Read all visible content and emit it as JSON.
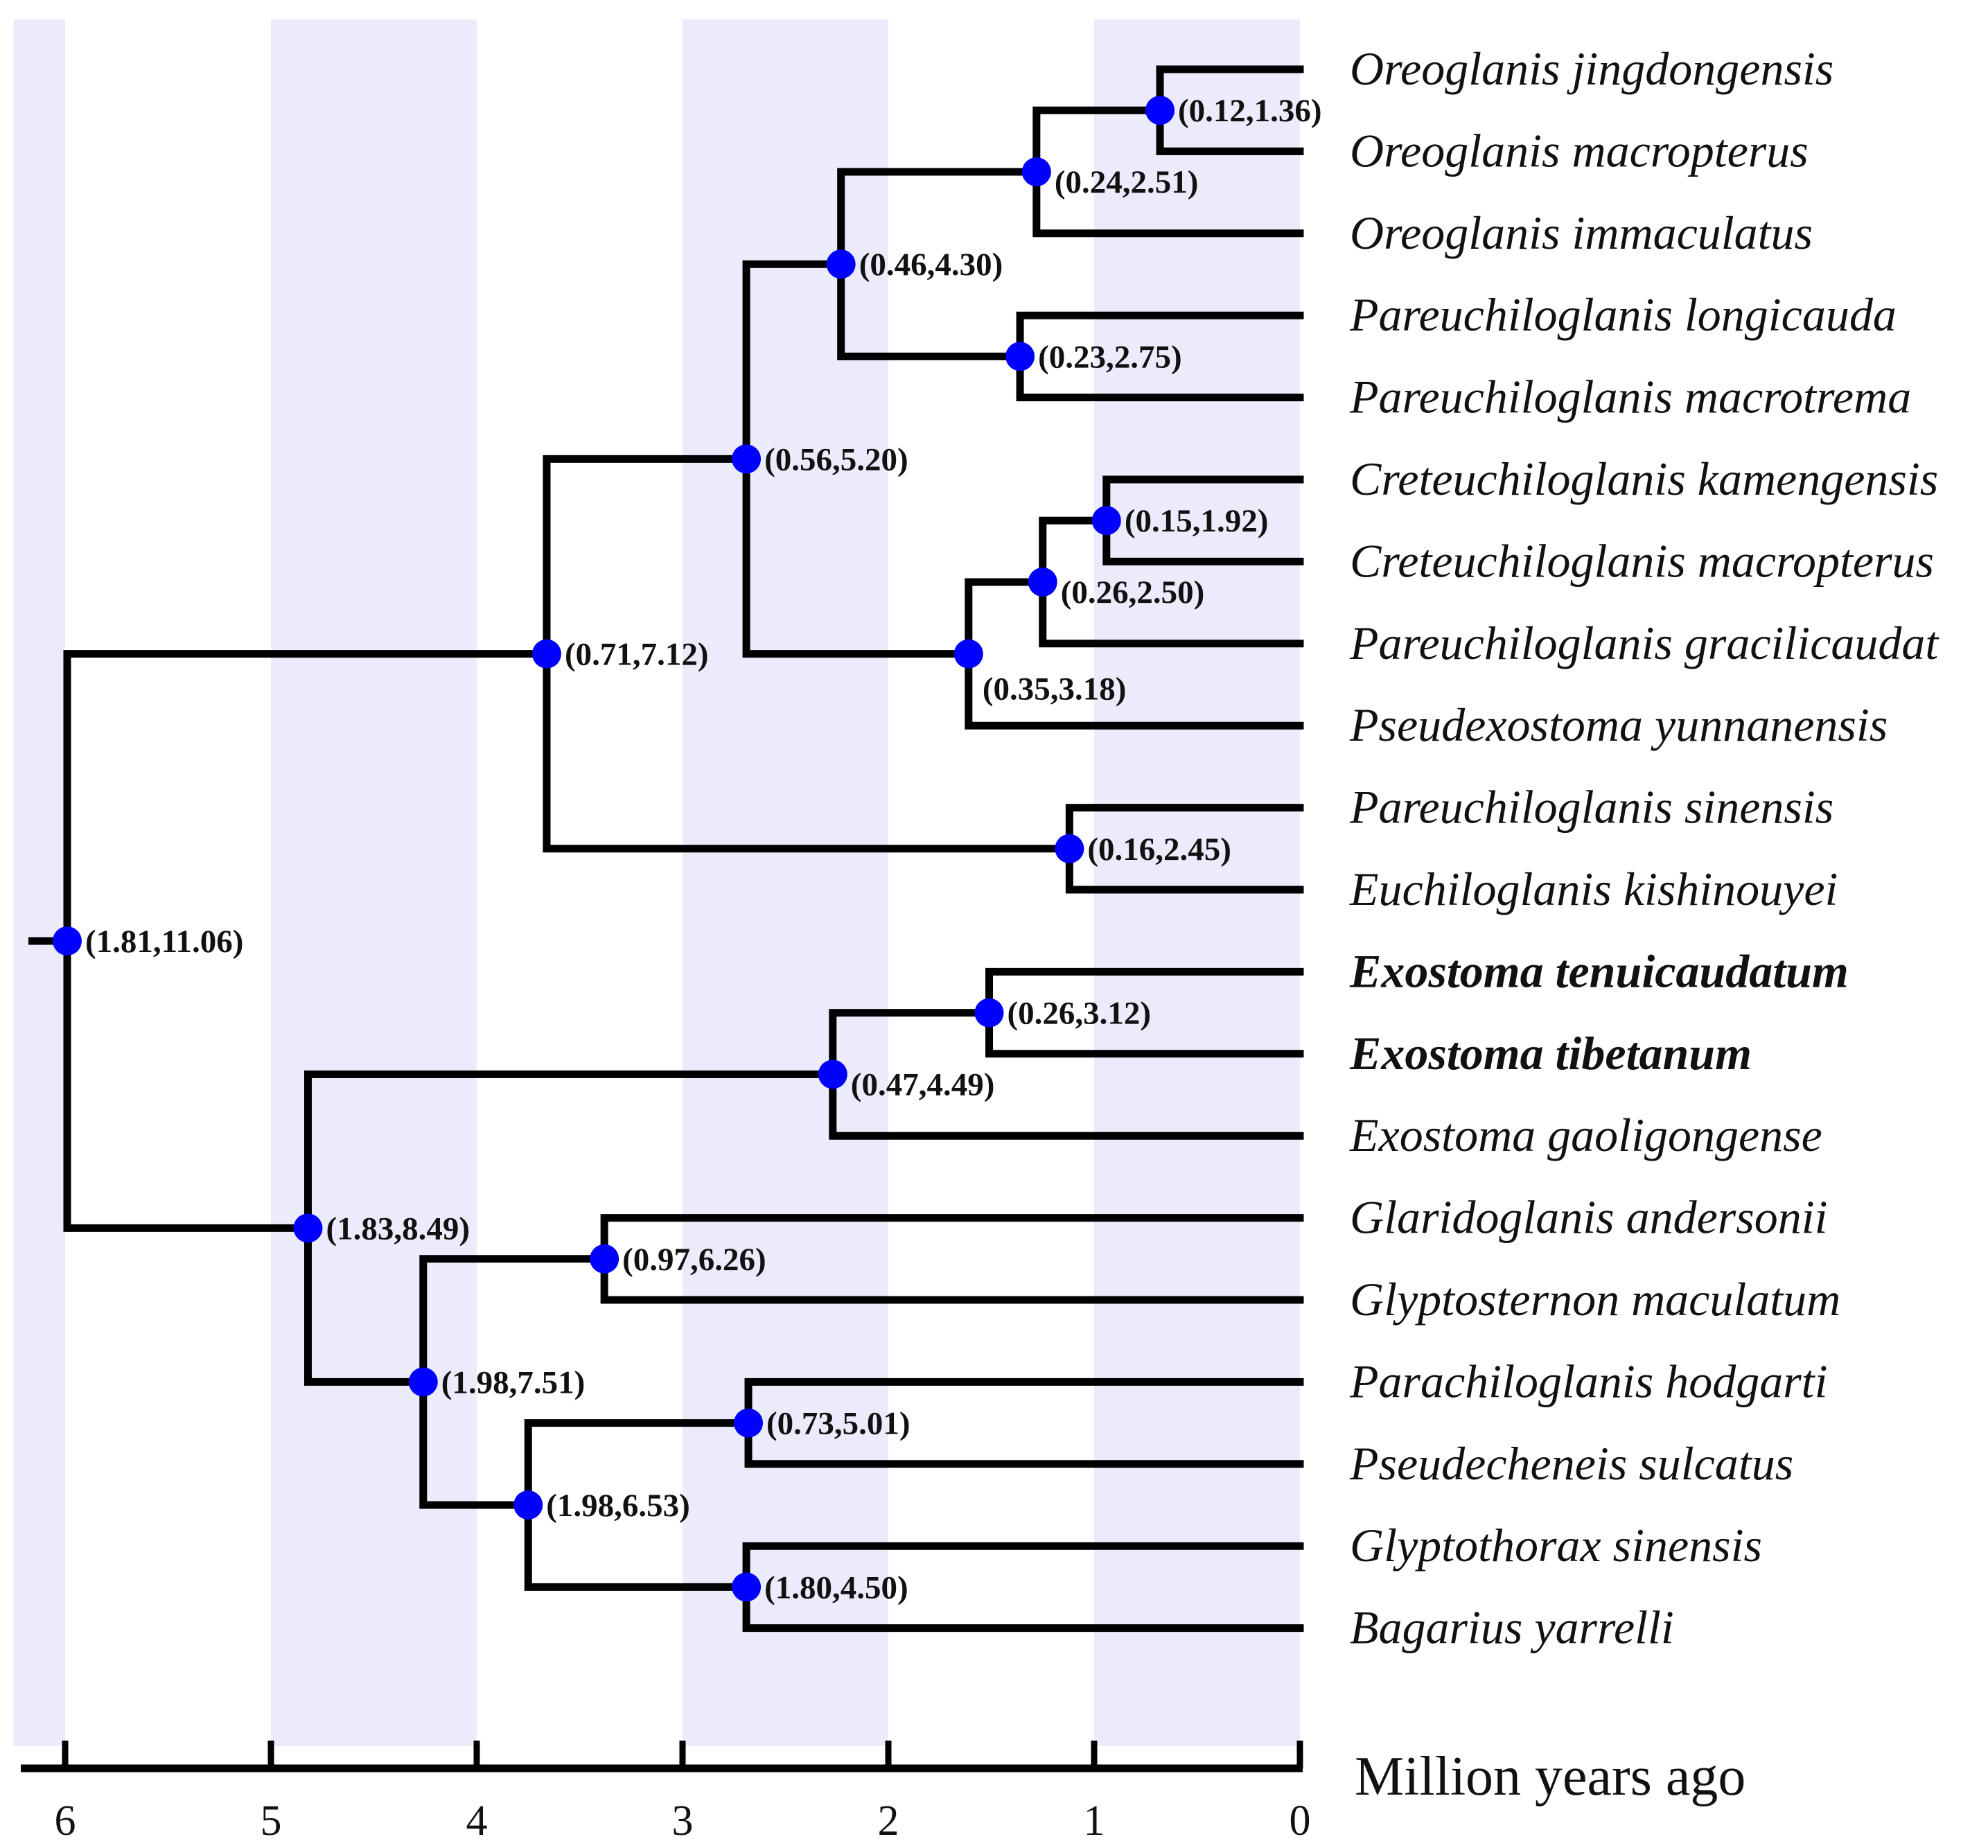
{
  "colors": {
    "band": "#ebebfb",
    "node": "#0000ff",
    "line": "#000000"
  },
  "axis": {
    "title": "Million years ago",
    "range": [
      6.25,
      0
    ],
    "ticks": [
      {
        "value": 6,
        "label": "6"
      },
      {
        "value": 5,
        "label": "5"
      },
      {
        "value": 4,
        "label": "4"
      },
      {
        "value": 3,
        "label": "3"
      },
      {
        "value": 2,
        "label": "2"
      },
      {
        "value": 1,
        "label": "1"
      },
      {
        "value": 0,
        "label": "0"
      }
    ],
    "bands": [
      [
        6.25,
        6.0
      ],
      [
        5.0,
        4.0
      ],
      [
        3.0,
        2.0
      ],
      [
        1.0,
        0.0
      ]
    ]
  },
  "taxa": [
    {
      "name": "Oreoglanis jingdongensis",
      "bold": false
    },
    {
      "name": "Oreoglanis macropterus",
      "bold": false
    },
    {
      "name": "Oreoglanis immaculatus",
      "bold": false
    },
    {
      "name": "Pareuchiloglanis longicauda",
      "bold": false
    },
    {
      "name": "Pareuchiloglanis macrotrema",
      "bold": false
    },
    {
      "name": "Creteuchiloglanis kamengensis",
      "bold": false
    },
    {
      "name": "Creteuchiloglanis macropterus",
      "bold": false
    },
    {
      "name": "Pareuchiloglanis gracilicaudat",
      "bold": false
    },
    {
      "name": "Pseudexostoma yunnanensis",
      "bold": false
    },
    {
      "name": "Pareuchiloglanis sinensis",
      "bold": false
    },
    {
      "name": "Euchiloglanis kishinouyei",
      "bold": false
    },
    {
      "name": "Exostoma tenuicaudatum",
      "bold": true
    },
    {
      "name": "Exostoma tibetanum",
      "bold": true
    },
    {
      "name": "Exostoma gaoligongense",
      "bold": false
    },
    {
      "name": "Glaridoglanis andersonii",
      "bold": false
    },
    {
      "name": "Glyptosternon maculatum",
      "bold": false
    },
    {
      "name": "Parachiloglanis hodgarti",
      "bold": false
    },
    {
      "name": "Pseudecheneis sulcatus",
      "bold": false
    },
    {
      "name": "Glyptothorax sinensis",
      "bold": false
    },
    {
      "name": "Bagarius yarrelli",
      "bold": false
    }
  ],
  "nodes": [
    {
      "id": "n1",
      "age": 0.68,
      "children": [
        0,
        1
      ],
      "label": "(0.12,1.36)",
      "label_pos": "right"
    },
    {
      "id": "n2",
      "age": 1.28,
      "children": [
        "n1",
        2
      ],
      "label": "(0.24,2.51)",
      "label_pos": "right-below"
    },
    {
      "id": "n4",
      "age": 1.36,
      "children": [
        3,
        4
      ],
      "label": "(0.23,2.75)",
      "label_pos": "right"
    },
    {
      "id": "n3",
      "age": 2.23,
      "children": [
        "n2",
        "n4"
      ],
      "label": "(0.46,4.30)",
      "label_pos": "right"
    },
    {
      "id": "n5",
      "age": 0.94,
      "children": [
        5,
        6
      ],
      "label": "(0.15,1.92)",
      "label_pos": "right"
    },
    {
      "id": "n6",
      "age": 1.25,
      "children": [
        "n5",
        7
      ],
      "label": "(0.26,2.50)",
      "label_pos": "right-below"
    },
    {
      "id": "n7",
      "age": 1.61,
      "children": [
        "n6",
        8
      ],
      "label": "(0.35,3.18)",
      "label_pos": "below"
    },
    {
      "id": "n8",
      "age": 2.69,
      "children": [
        "n3",
        "n7"
      ],
      "label": "(0.56,5.20)",
      "label_pos": "right"
    },
    {
      "id": "n9",
      "age": 1.12,
      "children": [
        9,
        10
      ],
      "label": "(0.16,2.45)",
      "label_pos": "right"
    },
    {
      "id": "n10",
      "age": 3.66,
      "children": [
        "n8",
        "n9"
      ],
      "label": "(0.71,7.12)",
      "label_pos": "right"
    },
    {
      "id": "n11",
      "age": 1.51,
      "children": [
        11,
        12
      ],
      "label": "(0.26,3.12)",
      "label_pos": "right"
    },
    {
      "id": "n12",
      "age": 2.27,
      "children": [
        "n11",
        13
      ],
      "label": "(0.47,4.49)",
      "label_pos": "right-below"
    },
    {
      "id": "n13",
      "age": 3.38,
      "children": [
        14,
        15
      ],
      "label": "(0.97,6.26)",
      "label_pos": "right"
    },
    {
      "id": "n14",
      "age": 2.68,
      "children": [
        16,
        17
      ],
      "label": "(0.73,5.01)",
      "label_pos": "right"
    },
    {
      "id": "n15",
      "age": 2.69,
      "children": [
        18,
        19
      ],
      "label": "(1.80,4.50)",
      "label_pos": "right"
    },
    {
      "id": "n16",
      "age": 3.75,
      "children": [
        "n14",
        "n15"
      ],
      "label": "(1.98,6.53)",
      "label_pos": "right"
    },
    {
      "id": "n17",
      "age": 4.26,
      "children": [
        "n13",
        "n16"
      ],
      "label": "(1.98,7.51)",
      "label_pos": "right"
    },
    {
      "id": "n18",
      "age": 4.82,
      "children": [
        "n12",
        "n17"
      ],
      "label": "(1.83,8.49)",
      "label_pos": "right"
    },
    {
      "id": "root",
      "age": 5.99,
      "children": [
        "n10",
        "n18"
      ],
      "label": "(1.81,11.06)",
      "label_pos": "right"
    }
  ],
  "root_stem": 0.17
}
